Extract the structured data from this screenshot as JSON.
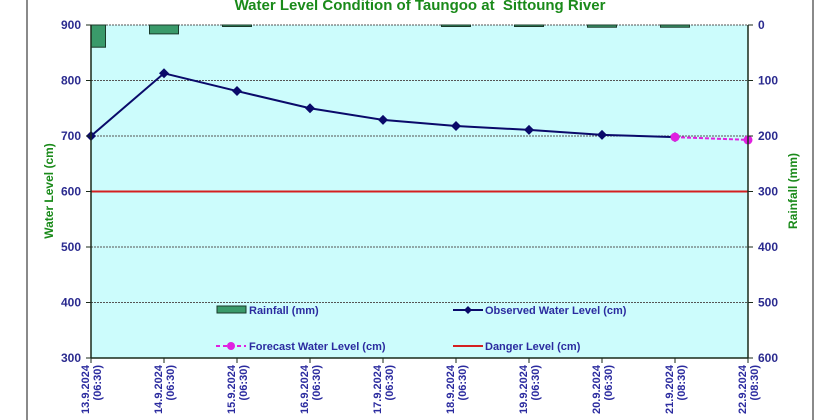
{
  "chart_data": {
    "type": "line",
    "title": "Water Level Condition of Taungoo at  Sittoung River",
    "xlabel": "",
    "ylabel": "Water Level (cm)",
    "y2label": "Rainfall (mm)",
    "ylim": [
      300,
      900
    ],
    "y_ticks": [
      900,
      800,
      700,
      600,
      500,
      400,
      300
    ],
    "y2lim": [
      0,
      600
    ],
    "y2_inverted": true,
    "y2_ticks": [
      0,
      100,
      200,
      300,
      400,
      500,
      600
    ],
    "grid": true,
    "categories": [
      "13.9.2024 (06:30)",
      "14.9.2024 (06:30)",
      "15.9.2024 (06:30)",
      "16.9.2024 (06:30)",
      "17.9.2024 (06:30)",
      "18.9.2024 (06:30)",
      "19.9.2024 (06:30)",
      "20.9.2024 (06:30)",
      "21.9.2024 (08:30)",
      "22.9.2024 (08:30)"
    ],
    "category_lines": [
      [
        "13.9.2024",
        "(06:30)"
      ],
      [
        "14.9.2024",
        "(06:30)"
      ],
      [
        "15.9.2024",
        "(06:30)"
      ],
      [
        "16.9.2024",
        "(06:30)"
      ],
      [
        "17.9.2024",
        "(06:30)"
      ],
      [
        "18.9.2024",
        "(06:30)"
      ],
      [
        "19.9.2024",
        "(06:30)"
      ],
      [
        "20.9.2024",
        "(06:30)"
      ],
      [
        "21.9.2024",
        "(08:30)"
      ],
      [
        "22.9.2024",
        "(08:30)"
      ]
    ],
    "series": [
      {
        "name": "Rainfall (mm)",
        "type": "bar",
        "axis": "right",
        "color": "#3a9a6a",
        "values": [
          40,
          16,
          2,
          0,
          0,
          1,
          1,
          4,
          4,
          null
        ]
      },
      {
        "name": "Observed Water Level (cm)",
        "type": "line",
        "axis": "left",
        "color": "#0a0a6a",
        "marker": "diamond",
        "values": [
          700,
          813,
          781,
          750,
          729,
          718,
          711,
          702,
          698,
          null
        ]
      },
      {
        "name": "Forecast Water Level (cm)",
        "type": "line",
        "axis": "left",
        "color": "#e020e0",
        "dashed": true,
        "marker": "circle",
        "values": [
          null,
          null,
          null,
          null,
          null,
          null,
          null,
          null,
          698,
          693
        ]
      },
      {
        "name": "Danger Level (cm)",
        "type": "hline",
        "axis": "left",
        "color": "#d42020",
        "value": 600
      }
    ],
    "legend": {
      "placement": "bottom-center-inside",
      "entries": [
        "Rainfall (mm)",
        "Observed Water Level (cm)",
        "Forecast Water Level (cm)",
        "Danger Level (cm)"
      ]
    },
    "colors": {
      "plot_background": "#ccfcfc",
      "title": "#1a8a1a",
      "tick_text": "#2b2b8f"
    }
  }
}
